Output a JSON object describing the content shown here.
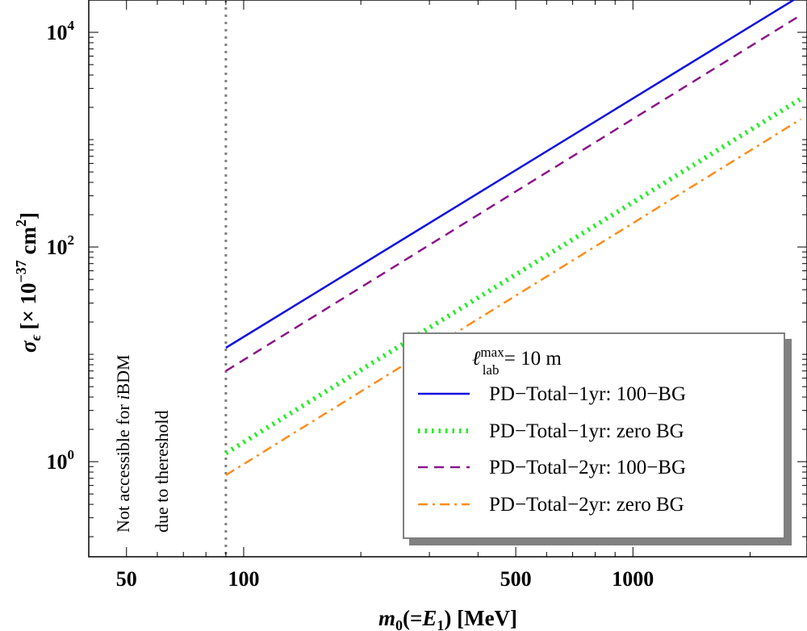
{
  "chart_data": {
    "type": "line",
    "title": "",
    "xlabel": {
      "m": "m",
      "sub0": "0",
      "mid": "(=",
      "E": "E",
      "sub1": "1",
      "tail": ") [MeV]"
    },
    "ylabel": {
      "sigma": "σ",
      "eps": "ϵ",
      "pre": "[× 10",
      "exp": "−37",
      "unit": " cm",
      "unitexp": "2",
      "close": "]"
    },
    "x_scale": "log",
    "y_scale": "log",
    "xlim": [
      40,
      2800
    ],
    "ylim": [
      0.13,
      20000
    ],
    "x_ticks": [
      {
        "value": 50,
        "label": "50"
      },
      {
        "value": 100,
        "label": "100"
      },
      {
        "value": 500,
        "label": "500"
      },
      {
        "value": 1000,
        "label": "1000"
      }
    ],
    "y_ticks": [
      {
        "value": 1,
        "base": "10",
        "exp": "0"
      },
      {
        "value": 100,
        "base": "10",
        "exp": "2"
      },
      {
        "value": 10000,
        "base": "10",
        "exp": "4"
      }
    ],
    "threshold_x": 90,
    "annotation": [
      "Not accessible for ",
      "i",
      "BDM",
      "due to thereshold"
    ],
    "legend": {
      "header_l": "ℓ",
      "header_sup": "max",
      "header_sub": "lab",
      "header_rest": " = 10 m",
      "position": "bottom-right"
    },
    "series": [
      {
        "name": "PD−Total−1yr: 100−BG",
        "color": "#1010e0",
        "dash": "solid",
        "x": [
          90,
          2700
        ],
        "y": [
          11.5,
          22000
        ]
      },
      {
        "name": "PD−Total−1yr: zero BG",
        "color": "#22ee22",
        "dash": "dotted",
        "x": [
          90,
          2700
        ],
        "y": [
          1.2,
          2400
        ]
      },
      {
        "name": "PD−Total−2yr: 100−BG",
        "color": "#8a168a",
        "dash": "dashed",
        "x": [
          90,
          2700
        ],
        "y": [
          7.0,
          14500
        ]
      },
      {
        "name": "PD−Total−2yr: zero BG",
        "color": "#ff8c1a",
        "dash": "dashdot",
        "x": [
          90,
          2700
        ],
        "y": [
          0.75,
          1550
        ]
      }
    ]
  }
}
